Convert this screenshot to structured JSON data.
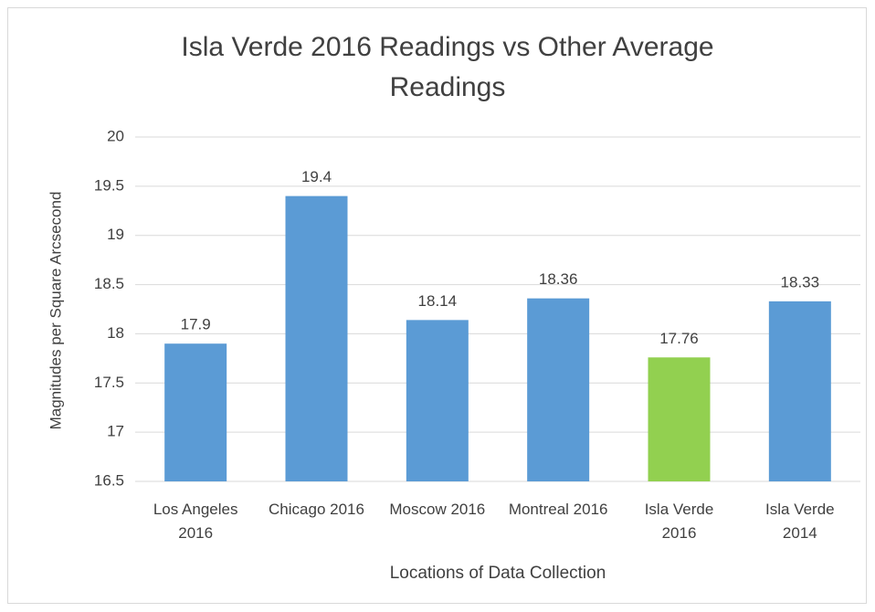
{
  "chart_data": {
    "type": "bar",
    "title": "Isla Verde 2016 Readings vs Other Average Readings",
    "x_label": "Locations of Data Collection",
    "y_label": "Magnitudes per Square Arcsecond",
    "categories": [
      "Los Angeles 2016",
      "Chicago 2016",
      "Moscow 2016",
      "Montreal 2016",
      "Isla Verde 2016",
      "Isla Verde 2014"
    ],
    "values": [
      17.9,
      19.4,
      18.14,
      18.36,
      17.76,
      18.33
    ],
    "colors": [
      "#5b9bd5",
      "#5b9bd5",
      "#5b9bd5",
      "#5b9bd5",
      "#92d050",
      "#5b9bd5"
    ],
    "ylim": [
      16.5,
      20
    ],
    "yticks": [
      16.5,
      17,
      17.5,
      18,
      18.5,
      19,
      19.5,
      20
    ],
    "grid": true
  }
}
